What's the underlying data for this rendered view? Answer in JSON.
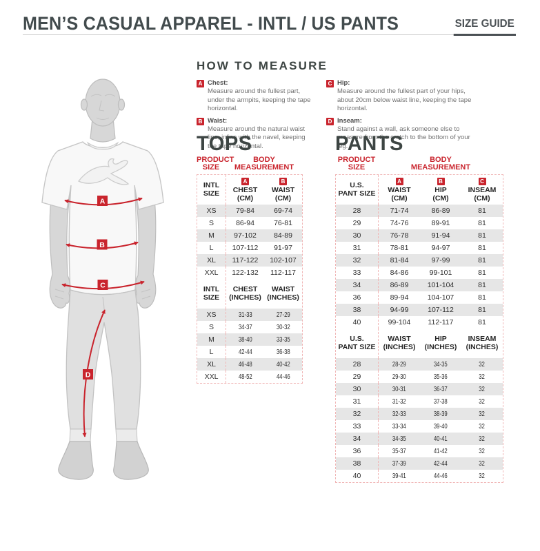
{
  "page": {
    "title": "MEN’S CASUAL APPAREL - INTL / US PANTS",
    "size_guide_label": "SIZE GUIDE"
  },
  "colors": {
    "accent_red": "#c9242d",
    "dark_text": "#3d4543",
    "row_shade": "#e6e6e6",
    "table_border": "#f0b5b5"
  },
  "how_to_measure": {
    "heading": "HOW TO MEASURE",
    "items": [
      {
        "letter": "A",
        "label": "Chest:",
        "text": "Measure around the fullest part, under the armpits, keeping the tape horizontal."
      },
      {
        "letter": "B",
        "label": "Waist:",
        "text": "Measure around the natural waist line, inline with the navel, keeping the tape horizontal."
      },
      {
        "letter": "C",
        "label": "Hip:",
        "text": "Measure around the fullest part of your hips, about 20cm below waist line, keeping the tape horizontal."
      },
      {
        "letter": "D",
        "label": "Inseam:",
        "text": "Stand against a wall, ask someone else to measure from the crotch to the bottom of your leg."
      }
    ]
  },
  "figure": {
    "markers": [
      "A",
      "B",
      "C",
      "D"
    ]
  },
  "tops": {
    "title": "TOPS",
    "product_size_label": "PRODUCT\nSIZE",
    "body_measurement_label": "BODY\nMEASUREMENT",
    "sections": [
      {
        "size_header": "INTL\nSIZE",
        "condensed": false,
        "columns": [
          {
            "badge": "A",
            "label": "CHEST\n(CM)"
          },
          {
            "badge": "B",
            "label": "WAIST\n(CM)"
          }
        ],
        "rows": [
          {
            "size": "XS",
            "values": [
              "79-84",
              "69-74"
            ]
          },
          {
            "size": "S",
            "values": [
              "86-94",
              "76-81"
            ]
          },
          {
            "size": "M",
            "values": [
              "97-102",
              "84-89"
            ]
          },
          {
            "size": "L",
            "values": [
              "107-112",
              "91-97"
            ]
          },
          {
            "size": "XL",
            "values": [
              "117-122",
              "102-107"
            ]
          },
          {
            "size": "XXL",
            "values": [
              "122-132",
              "112-117"
            ]
          }
        ]
      },
      {
        "size_header": "INTL\nSIZE",
        "condensed": true,
        "columns": [
          {
            "badge": null,
            "label": "CHEST\n(INCHES)"
          },
          {
            "badge": null,
            "label": "WAIST\n(INCHES)"
          }
        ],
        "rows": [
          {
            "size": "XS",
            "values": [
              "31-33",
              "27-29"
            ]
          },
          {
            "size": "S",
            "values": [
              "34-37",
              "30-32"
            ]
          },
          {
            "size": "M",
            "values": [
              "38-40",
              "33-35"
            ]
          },
          {
            "size": "L",
            "values": [
              "42-44",
              "36-38"
            ]
          },
          {
            "size": "XL",
            "values": [
              "46-48",
              "40-42"
            ]
          },
          {
            "size": "XXL",
            "values": [
              "48-52",
              "44-46"
            ]
          }
        ]
      }
    ]
  },
  "pants": {
    "title": "PANTS",
    "product_size_label": "PRODUCT\nSIZE",
    "body_measurement_label": "BODY\nMEASUREMENT",
    "sections": [
      {
        "size_header": "U.S.\nPANT SIZE",
        "condensed": false,
        "columns": [
          {
            "badge": "A",
            "label": "WAIST\n(CM)"
          },
          {
            "badge": "B",
            "label": "HIP\n(CM)"
          },
          {
            "badge": "C",
            "label": "INSEAM\n(CM)"
          }
        ],
        "rows": [
          {
            "size": "28",
            "values": [
              "71-74",
              "86-89",
              "81"
            ]
          },
          {
            "size": "29",
            "values": [
              "74-76",
              "89-91",
              "81"
            ]
          },
          {
            "size": "30",
            "values": [
              "76-78",
              "91-94",
              "81"
            ]
          },
          {
            "size": "31",
            "values": [
              "78-81",
              "94-97",
              "81"
            ]
          },
          {
            "size": "32",
            "values": [
              "81-84",
              "97-99",
              "81"
            ]
          },
          {
            "size": "33",
            "values": [
              "84-86",
              "99-101",
              "81"
            ]
          },
          {
            "size": "34",
            "values": [
              "86-89",
              "101-104",
              "81"
            ]
          },
          {
            "size": "36",
            "values": [
              "89-94",
              "104-107",
              "81"
            ]
          },
          {
            "size": "38",
            "values": [
              "94-99",
              "107-112",
              "81"
            ]
          },
          {
            "size": "40",
            "values": [
              "99-104",
              "112-117",
              "81"
            ]
          }
        ]
      },
      {
        "size_header": "U.S.\nPANT SIZE",
        "condensed": true,
        "columns": [
          {
            "badge": null,
            "label": "WAIST\n(INCHES)"
          },
          {
            "badge": null,
            "label": "HIP\n(INCHES)"
          },
          {
            "badge": null,
            "label": "INSEAM\n(INCHES)"
          }
        ],
        "rows": [
          {
            "size": "28",
            "values": [
              "28-29",
              "34-35",
              "32"
            ]
          },
          {
            "size": "29",
            "values": [
              "29-30",
              "35-36",
              "32"
            ]
          },
          {
            "size": "30",
            "values": [
              "30-31",
              "36-37",
              "32"
            ]
          },
          {
            "size": "31",
            "values": [
              "31-32",
              "37-38",
              "32"
            ]
          },
          {
            "size": "32",
            "values": [
              "32-33",
              "38-39",
              "32"
            ]
          },
          {
            "size": "33",
            "values": [
              "33-34",
              "39-40",
              "32"
            ]
          },
          {
            "size": "34",
            "values": [
              "34-35",
              "40-41",
              "32"
            ]
          },
          {
            "size": "36",
            "values": [
              "35-37",
              "41-42",
              "32"
            ]
          },
          {
            "size": "38",
            "values": [
              "37-39",
              "42-44",
              "32"
            ]
          },
          {
            "size": "40",
            "values": [
              "39-41",
              "44-46",
              "32"
            ]
          }
        ]
      }
    ]
  }
}
